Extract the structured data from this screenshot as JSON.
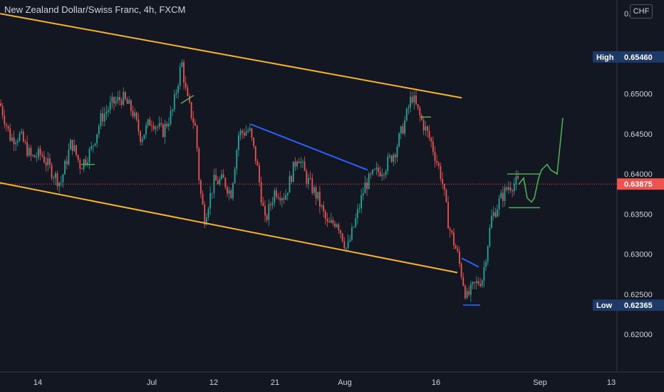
{
  "header": {
    "title": "New Zealand Dollar/Swiss Franc, 4h, FXCM",
    "currency": "CHF"
  },
  "chart_data": {
    "type": "candlestick",
    "title": "New Zealand Dollar/Swiss Franc, 4h, FXCM",
    "ylim": [
      0.6153,
      0.6617
    ],
    "y_ticks": [
      "0.66000",
      "0.65500",
      "0.65000",
      "0.64500",
      "0.64000",
      "0.63500",
      "0.63000",
      "0.62500",
      "0.62000"
    ],
    "x_ticks": [
      "14",
      "Jul",
      "12",
      "21",
      "Aug",
      "16",
      "Sep",
      "13"
    ],
    "price_labels": [
      {
        "name": "High",
        "value": "0.65460",
        "style": "box"
      },
      {
        "name": "",
        "value": "0.63875",
        "style": "current"
      },
      {
        "name": "Low",
        "value": "0.62365",
        "style": "box"
      }
    ],
    "colors": {
      "up": "#26a69a",
      "down": "#ef5350",
      "channel": "#f5b32e",
      "trendline": "#2962ff",
      "projection": "#4caf50",
      "current_line": "#ef5350"
    },
    "anchors": [
      [
        0,
        0.6488
      ],
      [
        15,
        0.6444
      ],
      [
        28,
        0.6448
      ],
      [
        44,
        0.642
      ],
      [
        58,
        0.6425
      ],
      [
        72,
        0.6404
      ],
      [
        85,
        0.6388
      ],
      [
        100,
        0.644
      ],
      [
        113,
        0.641
      ],
      [
        128,
        0.643
      ],
      [
        142,
        0.647
      ],
      [
        158,
        0.6488
      ],
      [
        172,
        0.6495
      ],
      [
        186,
        0.6478
      ],
      [
        198,
        0.6445
      ],
      [
        212,
        0.6468
      ],
      [
        228,
        0.6452
      ],
      [
        242,
        0.6478
      ],
      [
        255,
        0.654
      ],
      [
        262,
        0.6495
      ],
      [
        275,
        0.6455
      ],
      [
        280,
        0.6385
      ],
      [
        287,
        0.6345
      ],
      [
        300,
        0.639
      ],
      [
        314,
        0.6392
      ],
      [
        324,
        0.6375
      ],
      [
        335,
        0.645
      ],
      [
        350,
        0.6455
      ],
      [
        360,
        0.6415
      ],
      [
        372,
        0.634
      ],
      [
        386,
        0.638
      ],
      [
        400,
        0.6372
      ],
      [
        418,
        0.6425
      ],
      [
        430,
        0.6395
      ],
      [
        446,
        0.637
      ],
      [
        460,
        0.6335
      ],
      [
        473,
        0.6342
      ],
      [
        487,
        0.6305
      ],
      [
        500,
        0.6345
      ],
      [
        512,
        0.6385
      ],
      [
        525,
        0.64
      ],
      [
        540,
        0.6408
      ],
      [
        555,
        0.643
      ],
      [
        568,
        0.6465
      ],
      [
        578,
        0.6498
      ],
      [
        590,
        0.647
      ],
      [
        605,
        0.644
      ],
      [
        620,
        0.6395
      ],
      [
        630,
        0.6335
      ],
      [
        642,
        0.63
      ],
      [
        655,
        0.6245
      ],
      [
        665,
        0.626
      ],
      [
        677,
        0.627
      ],
      [
        690,
        0.6345
      ],
      [
        702,
        0.6368
      ],
      [
        714,
        0.6385
      ],
      [
        726,
        0.639
      ],
      [
        730,
        0.6387
      ]
    ],
    "channel_upper": [
      [
        0,
        0.66
      ],
      [
        648,
        0.6495
      ]
    ],
    "channel_lower": [
      [
        0,
        0.6389
      ],
      [
        642,
        0.6277
      ]
    ],
    "trendlines": [
      [
        [
          352,
          0.6462
        ],
        [
          516,
          0.6405
        ]
      ],
      [
        [
          648,
          0.6295
        ],
        [
          672,
          0.6284
        ]
      ]
    ],
    "levels": [
      [
        [
          254,
          0.6488
        ],
        [
          272,
          0.6498
        ]
      ],
      [
        [
          114,
          0.6412
        ],
        [
          133,
          0.6412
        ]
      ],
      [
        [
          590,
          0.6471
        ],
        [
          605,
          0.6471
        ]
      ],
      [
        [
          650,
          0.62365
        ],
        [
          674,
          0.62365
        ]
      ],
      [
        [
          712,
          0.64
        ],
        [
          758,
          0.64
        ]
      ],
      [
        [
          714,
          0.6358
        ],
        [
          758,
          0.6358
        ]
      ]
    ],
    "projection": [
      [
        728,
        0.6387
      ],
      [
        735,
        0.6395
      ],
      [
        740,
        0.637
      ],
      [
        746,
        0.6365
      ],
      [
        750,
        0.637
      ],
      [
        756,
        0.6395
      ],
      [
        760,
        0.6405
      ],
      [
        768,
        0.6412
      ],
      [
        773,
        0.6405
      ],
      [
        782,
        0.64
      ],
      [
        790,
        0.647
      ]
    ],
    "current_price": 0.63875,
    "high": 0.6546,
    "low": 0.62365
  }
}
